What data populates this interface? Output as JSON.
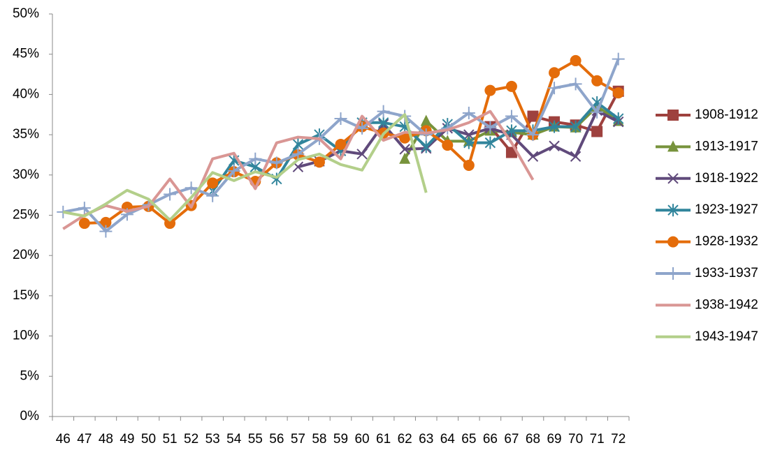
{
  "chart_data": {
    "type": "line",
    "categories": [
      "46",
      "47",
      "48",
      "49",
      "50",
      "51",
      "52",
      "53",
      "54",
      "55",
      "56",
      "57",
      "58",
      "59",
      "60",
      "61",
      "62",
      "63",
      "64",
      "65",
      "66",
      "67",
      "68",
      "69",
      "70",
      "71",
      "72"
    ],
    "ylim": [
      0,
      50
    ],
    "yticks": [
      {
        "value": 0,
        "label": "0%"
      },
      {
        "value": 5,
        "label": "5%"
      },
      {
        "value": 10,
        "label": "10%"
      },
      {
        "value": 15,
        "label": "15%"
      },
      {
        "value": 20,
        "label": "20%"
      },
      {
        "value": 25,
        "label": "25%"
      },
      {
        "value": 30,
        "label": "30%"
      },
      {
        "value": 35,
        "label": "35%"
      },
      {
        "value": 40,
        "label": "40%"
      },
      {
        "value": 45,
        "label": "45%"
      },
      {
        "value": 50,
        "label": "50%"
      }
    ],
    "legend": "right",
    "series": [
      {
        "name": "1908-1912",
        "color": "#9e413e",
        "marker": "square",
        "values": [
          null,
          null,
          null,
          null,
          null,
          null,
          null,
          null,
          null,
          null,
          null,
          null,
          null,
          null,
          null,
          null,
          null,
          null,
          null,
          null,
          36.0,
          32.8,
          37.3,
          36.6,
          36.2,
          35.4,
          40.4
        ]
      },
      {
        "name": "1913-1917",
        "color": "#77933c",
        "marker": "triangle",
        "values": [
          null,
          null,
          null,
          null,
          null,
          null,
          null,
          null,
          null,
          null,
          null,
          null,
          null,
          null,
          null,
          null,
          32.0,
          36.7,
          34.2,
          34.2,
          35.5,
          35.3,
          35.0,
          36.0,
          35.9,
          38.5,
          36.7
        ]
      },
      {
        "name": "1918-1922",
        "color": "#604a7b",
        "marker": "x",
        "values": [
          null,
          null,
          null,
          null,
          null,
          null,
          null,
          null,
          null,
          null,
          null,
          31.0,
          31.7,
          33.0,
          32.6,
          36.3,
          33.2,
          33.3,
          35.8,
          35.0,
          35.8,
          35.0,
          32.3,
          33.6,
          32.3,
          38.0,
          36.6
        ]
      },
      {
        "name": "1923-1927",
        "color": "#31859c",
        "marker": "star",
        "values": [
          null,
          null,
          null,
          null,
          null,
          null,
          null,
          28.0,
          31.8,
          31.0,
          29.5,
          33.8,
          35.0,
          33.0,
          36.5,
          36.5,
          36.0,
          33.5,
          36.3,
          34.0,
          34.0,
          35.5,
          35.5,
          36.0,
          36.0,
          39.0,
          37.0
        ]
      },
      {
        "name": "1928-1932",
        "color": "#e46c0a",
        "marker": "circle",
        "values": [
          null,
          24.0,
          24.1,
          26.0,
          26.1,
          24.0,
          26.2,
          29.0,
          30.4,
          29.2,
          31.5,
          32.5,
          31.6,
          33.8,
          36.0,
          35.2,
          34.6,
          35.5,
          33.7,
          31.2,
          40.5,
          41.0,
          35.0,
          42.7,
          44.2,
          41.7,
          40.2
        ]
      },
      {
        "name": "1933-1937",
        "color": "#8ea5cb",
        "marker": "plus",
        "values": [
          25.4,
          25.9,
          23.0,
          25.1,
          26.3,
          27.6,
          28.4,
          27.4,
          30.5,
          32.0,
          31.5,
          32.6,
          34.5,
          37.0,
          35.8,
          37.9,
          37.3,
          35.0,
          35.8,
          37.7,
          35.9,
          37.3,
          35.0,
          40.8,
          41.3,
          37.8,
          44.4
        ]
      },
      {
        "name": "1938-1942",
        "color": "#d99694",
        "marker": "none",
        "values": [
          23.3,
          25.0,
          26.2,
          25.5,
          26.1,
          29.5,
          26.0,
          32.0,
          32.7,
          28.3,
          34.0,
          34.7,
          34.5,
          32.0,
          37.3,
          34.3,
          35.3,
          35.2,
          35.6,
          36.5,
          37.9,
          34.0,
          29.4,
          null,
          null,
          null,
          null
        ]
      },
      {
        "name": "1943-1947",
        "color": "#b3cf8a",
        "marker": "none",
        "values": [
          25.4,
          24.9,
          26.4,
          28.1,
          27.0,
          24.4,
          27.2,
          30.3,
          29.3,
          30.4,
          29.7,
          31.9,
          32.6,
          31.3,
          30.6,
          35.1,
          37.5,
          27.8,
          null,
          null,
          null,
          null,
          null,
          null,
          null,
          null,
          null
        ]
      }
    ]
  }
}
